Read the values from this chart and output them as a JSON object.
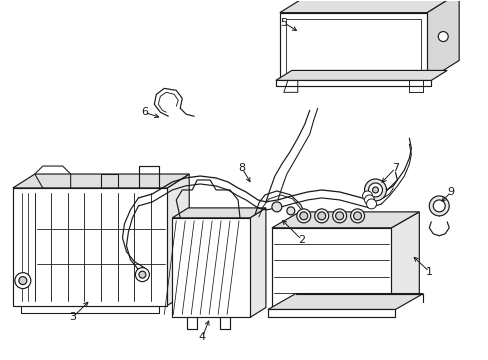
{
  "background_color": "#ffffff",
  "line_color": "#1a1a1a",
  "lw": 0.85,
  "fig_w": 4.89,
  "fig_h": 3.6,
  "dpi": 100
}
